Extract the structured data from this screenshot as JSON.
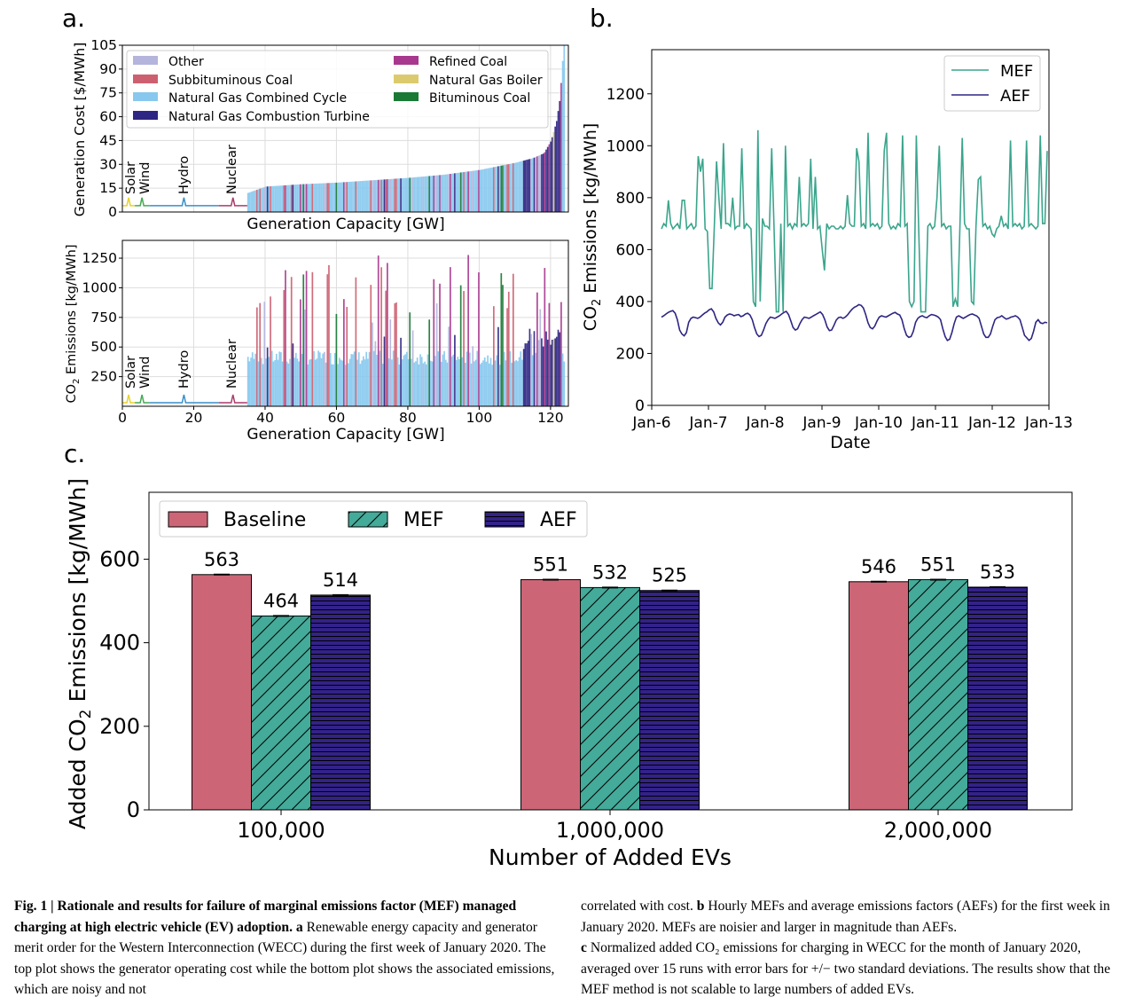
{
  "panel_labels": {
    "a": "a.",
    "b": "b.",
    "c": "c."
  },
  "chart_data": [
    {
      "id": "a_top",
      "type": "bar",
      "xlabel": "Generation Capacity [GW]",
      "ylabel": "Generation Cost [$/MWh]",
      "xlim": [
        0,
        125
      ],
      "ylim": [
        0,
        105
      ],
      "yticks": [
        0,
        15,
        30,
        45,
        60,
        75,
        90,
        105
      ],
      "grid": true,
      "legend": "top-left",
      "legend_entries": [
        {
          "label": "Other",
          "color": "#b4b4dc"
        },
        {
          "label": "Subbituminous Coal",
          "color": "#cd6070"
        },
        {
          "label": "Natural Gas Combined Cycle",
          "color": "#88c8ee"
        },
        {
          "label": "Natural Gas Combustion Turbine",
          "color": "#2e2683"
        },
        {
          "label": "Refined Coal",
          "color": "#a8388e"
        },
        {
          "label": "Natural Gas Boiler",
          "color": "#dccb6e"
        },
        {
          "label": "Bituminous Coal",
          "color": "#1a7a35"
        }
      ],
      "renewables": [
        {
          "name": "Solar",
          "x_range": [
            0,
            3.5
          ],
          "value": 4,
          "color": "#e8d22e"
        },
        {
          "name": "Wind",
          "x_range": [
            3.5,
            7.5
          ],
          "value": 4,
          "color": "#44aa55"
        },
        {
          "name": "Hydro",
          "x_range": [
            7.5,
            27
          ],
          "value": 4,
          "color": "#3a8fc8"
        },
        {
          "name": "Nuclear",
          "x_range": [
            27,
            35
          ],
          "value": 4,
          "color": "#a83c6c"
        }
      ],
      "merit_order_cost_profile": [
        [
          35,
          12
        ],
        [
          40,
          16
        ],
        [
          50,
          17.5
        ],
        [
          60,
          18.5
        ],
        [
          70,
          20
        ],
        [
          80,
          21.5
        ],
        [
          90,
          23.5
        ],
        [
          100,
          26.5
        ],
        [
          110,
          31
        ],
        [
          115,
          34
        ],
        [
          118,
          37
        ],
        [
          120,
          45
        ],
        [
          121.5,
          57
        ],
        [
          122.5,
          72
        ],
        [
          123.5,
          105
        ]
      ]
    },
    {
      "id": "a_bottom",
      "type": "bar",
      "xlabel": "Generation Capacity [GW]",
      "ylabel": "CO2 Emissions [kg/MWh]",
      "xlim": [
        0,
        125
      ],
      "ylim": [
        0,
        1400
      ],
      "xticks": [
        0,
        20,
        40,
        60,
        80,
        100,
        120
      ],
      "yticks": [
        250,
        500,
        750,
        1000,
        1250
      ],
      "grid": true,
      "renewables": [
        {
          "name": "Solar",
          "x_range": [
            0,
            3.5
          ],
          "value": 30,
          "color": "#e8d22e"
        },
        {
          "name": "Wind",
          "x_range": [
            3.5,
            7.5
          ],
          "value": 30,
          "color": "#44aa55"
        },
        {
          "name": "Hydro",
          "x_range": [
            7.5,
            27
          ],
          "value": 30,
          "color": "#3a8fc8"
        },
        {
          "name": "Nuclear",
          "x_range": [
            27,
            35
          ],
          "value": 30,
          "color": "#a83c6c"
        }
      ],
      "emission_levels": {
        "Natural Gas Combined Cycle": 390,
        "Natural Gas Combustion Turbine": 560,
        "Natural Gas Boiler": 600,
        "Refined Coal": 1050,
        "Subbituminous Coal": 1000,
        "Bituminous Coal": 900
      }
    },
    {
      "id": "b",
      "type": "line",
      "xlabel": "Date",
      "ylabel": "CO2 Emissions [kg/MWh]",
      "ylim": [
        0,
        1370
      ],
      "yticks": [
        0,
        200,
        400,
        600,
        800,
        1000,
        1200
      ],
      "xtick_labels": [
        "Jan-6",
        "Jan-7",
        "Jan-8",
        "Jan-9",
        "Jan-10",
        "Jan-11",
        "Jan-12",
        "Jan-13"
      ],
      "legend": "top-right",
      "series": [
        {
          "name": "MEF",
          "color": "#3aa58c",
          "values": [
            680,
            700,
            690,
            790,
            700,
            680,
            690,
            700,
            680,
            790,
            790,
            680,
            690,
            700,
            680,
            690,
            960,
            900,
            950,
            680,
            670,
            450,
            450,
            690,
            940,
            800,
            680,
            1010,
            700,
            700,
            690,
            800,
            680,
            690,
            690,
            990,
            680,
            700,
            690,
            680,
            400,
            380,
            1060,
            400,
            720,
            690,
            690,
            680,
            990,
            690,
            360,
            360,
            700,
            360,
            1000,
            690,
            700,
            680,
            700,
            690,
            880,
            690,
            700,
            690,
            700,
            950,
            680,
            880,
            680,
            690,
            600,
            520,
            700,
            680,
            690,
            690,
            680,
            680,
            690,
            680,
            690,
            810,
            700,
            690,
            690,
            990,
            940,
            690,
            700,
            680,
            1050,
            690,
            700,
            690,
            700,
            680,
            690,
            980,
            1050,
            700,
            680,
            690,
            680,
            700,
            690,
            1040,
            690,
            700,
            400,
            380,
            400,
            1040,
            690,
            360,
            360,
            360,
            690,
            700,
            680,
            690,
            800,
            1000,
            690,
            700,
            680,
            690,
            690,
            380,
            410,
            380,
            690,
            1030,
            700,
            680,
            680,
            400,
            390,
            690,
            870,
            880,
            690,
            700,
            680,
            690,
            660,
            650,
            680,
            690,
            730,
            690,
            700,
            680,
            1020,
            690,
            700,
            690,
            700,
            680,
            690,
            1020,
            690,
            700,
            690,
            680,
            690,
            1040,
            700,
            700,
            980
          ]
        },
        {
          "name": "AEF",
          "color": "#2e2683",
          "values": [
            340,
            345,
            352,
            358,
            362,
            365,
            355,
            330,
            290,
            275,
            268,
            280,
            320,
            335,
            340,
            338,
            335,
            340,
            348,
            355,
            360,
            368,
            372,
            360,
            335,
            318,
            310,
            320,
            340,
            348,
            352,
            350,
            345,
            348,
            350,
            342,
            345,
            352,
            355,
            348,
            330,
            300,
            275,
            265,
            270,
            290,
            315,
            330,
            340,
            338,
            335,
            340,
            345,
            352,
            358,
            362,
            350,
            325,
            300,
            290,
            295,
            315,
            330,
            340,
            338,
            335,
            340,
            345,
            350,
            355,
            360,
            350,
            330,
            302,
            288,
            290,
            308,
            328,
            338,
            340,
            335,
            340,
            348,
            360,
            370,
            378,
            382,
            388,
            385,
            375,
            350,
            318,
            300,
            295,
            305,
            325,
            340,
            345,
            342,
            340,
            345,
            350,
            355,
            358,
            352,
            348,
            330,
            295,
            270,
            262,
            265,
            285,
            320,
            335,
            342,
            345,
            340,
            338,
            345,
            350,
            348,
            345,
            340,
            330,
            295,
            265,
            250,
            255,
            280,
            315,
            340,
            345,
            340,
            335,
            340,
            345,
            350,
            352,
            348,
            344,
            335,
            305,
            275,
            262,
            262,
            275,
            305,
            330,
            338,
            340,
            345,
            338,
            332,
            335,
            340,
            342,
            345,
            340,
            330,
            300,
            270,
            260,
            250,
            258,
            285,
            320,
            330,
            318,
            315,
            320,
            318
          ]
        }
      ]
    },
    {
      "id": "c",
      "type": "bar",
      "xlabel": "Number of Added EVs",
      "ylabel": "Added CO2 Emissions [kg/MWh]",
      "categories": [
        "100,000",
        "1,000,000",
        "2,000,000"
      ],
      "ylim": [
        0,
        760
      ],
      "yticks": [
        0,
        200,
        400,
        600
      ],
      "legend": "top-left",
      "series": [
        {
          "name": "Baseline",
          "color": "#cc6677",
          "pattern": "none",
          "values": [
            563,
            551,
            546
          ]
        },
        {
          "name": "MEF",
          "color": "#44aa99",
          "pattern": "diagonal",
          "values": [
            464,
            532,
            551
          ]
        },
        {
          "name": "AEF",
          "color": "#332288",
          "pattern": "horizontal",
          "values": [
            514,
            525,
            533
          ]
        }
      ]
    }
  ],
  "caption": {
    "left_bold": "Fig. 1 | Rationale and results for failure of marginal emissions factor (MEF) managed charging at high electric vehicle (EV) adoption.",
    "left_a_label": "a",
    "left_text": "Renewable energy capacity and generator merit order for the Western Interconnection (WECC) during the first week of January 2020. The top plot shows the generator operating cost while the bottom plot shows the associated emissions, which are noisy and not",
    "right_text1": "correlated with cost.",
    "right_b_label": "b",
    "right_text2": "Hourly MEFs and average emissions factors (AEFs) for the first week in January 2020. MEFs are noisier and larger in magnitude than AEFs.",
    "right_c_label": "c",
    "right_text3": "Normalized added CO₂ emissions for charging in WECC for the month of January 2020, averaged over 15 runs with error bars for +/− two standard deviations. The results show that the MEF method is not scalable to large numbers of added EVs."
  }
}
